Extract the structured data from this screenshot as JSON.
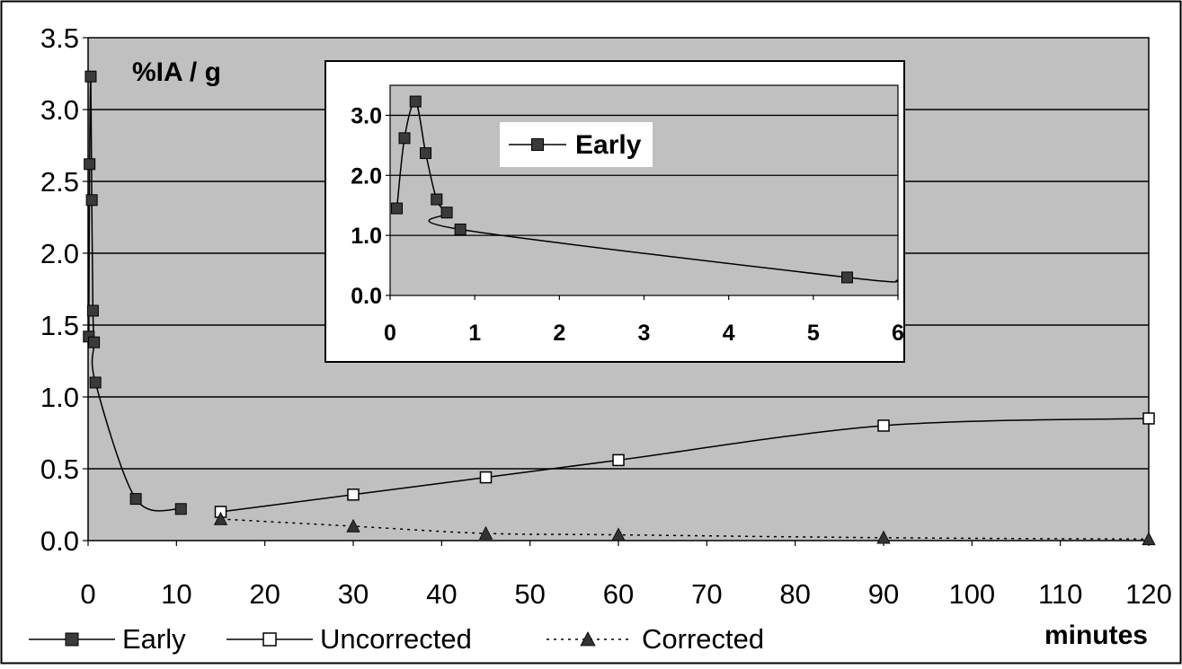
{
  "chart_data": [
    {
      "type": "line",
      "title": "",
      "ylabel": "%IA / g",
      "xlabel": "minutes",
      "xlim": [
        0,
        120
      ],
      "ylim": [
        0,
        3.5
      ],
      "x_ticks": [
        0,
        10,
        20,
        30,
        40,
        50,
        60,
        70,
        80,
        90,
        100,
        110,
        120
      ],
      "y_ticks": [
        "0.0",
        "0.5",
        "1.0",
        "1.5",
        "2.0",
        "2.5",
        "3.0",
        "3.5"
      ],
      "grid": true,
      "legend": "bottom",
      "series": [
        {
          "name": "Early",
          "marker": "filled-square",
          "line": "solid",
          "x": [
            0.08,
            0.17,
            0.3,
            0.42,
            0.55,
            0.67,
            0.83,
            5.4,
            10.5
          ],
          "y": [
            1.42,
            2.62,
            3.23,
            2.37,
            1.6,
            1.38,
            1.1,
            0.29,
            0.22
          ]
        },
        {
          "name": "Uncorrected",
          "marker": "open-square",
          "line": "solid",
          "x": [
            15,
            30,
            45,
            60,
            90,
            120
          ],
          "y": [
            0.2,
            0.32,
            0.44,
            0.56,
            0.8,
            0.85
          ]
        },
        {
          "name": "Corrected",
          "marker": "filled-triangle",
          "line": "dotted",
          "x": [
            15,
            30,
            45,
            60,
            90,
            120
          ],
          "y": [
            0.15,
            0.1,
            0.05,
            0.04,
            0.02,
            0.01
          ]
        }
      ]
    },
    {
      "type": "line",
      "title": "",
      "xlabel": "",
      "ylabel": "",
      "xlim": [
        0,
        6
      ],
      "ylim": [
        0,
        3.5
      ],
      "x_ticks": [
        0,
        1,
        2,
        3,
        4,
        5,
        6
      ],
      "y_ticks": [
        "0.0",
        "1.0",
        "2.0",
        "3.0"
      ],
      "grid": true,
      "legend": "top-left",
      "series": [
        {
          "name": "Early",
          "marker": "filled-square",
          "line": "solid",
          "x": [
            0.08,
            0.17,
            0.3,
            0.42,
            0.55,
            0.67,
            0.83,
            5.4
          ],
          "y": [
            1.45,
            2.62,
            3.23,
            2.37,
            1.6,
            1.38,
            1.1,
            0.3
          ]
        }
      ]
    }
  ],
  "colors": {
    "plot_background": "#c0c0c0",
    "gridline": "#000000",
    "series_line": "#000000"
  }
}
